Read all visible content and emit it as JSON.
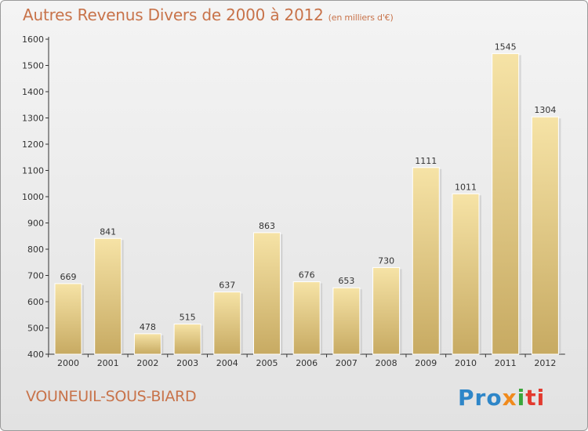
{
  "title": "Autres Revenus Divers de 2000 à 2012",
  "subtitle": "(en milliers d'€)",
  "city": "VOUNEUIL-SOUS-BIARD",
  "logo": {
    "p1": "Pro",
    "p2": "x",
    "p3": "i",
    "p4": "ti"
  },
  "colors": {
    "title": "#c8734a",
    "bar_light": "#f6e3a6",
    "bar_dark": "#c7aa62",
    "axis": "#333333"
  },
  "chart_data": {
    "type": "bar",
    "categories": [
      "2000",
      "2001",
      "2002",
      "2003",
      "2004",
      "2005",
      "2006",
      "2007",
      "2008",
      "2009",
      "2010",
      "2011",
      "2012"
    ],
    "values": [
      669,
      841,
      478,
      515,
      637,
      863,
      676,
      653,
      730,
      1111,
      1011,
      1545,
      1304
    ],
    "ylim": [
      400,
      1600
    ],
    "yticks": [
      400,
      500,
      600,
      700,
      800,
      900,
      1000,
      1100,
      1200,
      1300,
      1400,
      1500,
      1600
    ],
    "grid": false,
    "data_labels": true
  }
}
